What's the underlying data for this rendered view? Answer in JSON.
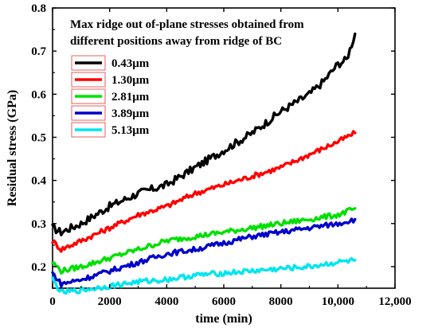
{
  "chart_data": {
    "type": "line",
    "title": "",
    "xlabel": "time (min)",
    "ylabel": "Residual stress (GPa)",
    "xlim": [
      0,
      12000
    ],
    "ylim": [
      0.15,
      0.8
    ],
    "grid": false,
    "legend_position": "upper-left",
    "x_ticks": [
      0,
      2000,
      4000,
      6000,
      8000,
      10000,
      12000
    ],
    "x_tick_labels": [
      "0",
      "2000",
      "4000",
      "6000",
      "8000",
      "10,000",
      "12,000"
    ],
    "y_ticks": [
      0.2,
      0.3,
      0.4,
      0.5,
      0.6,
      0.7,
      0.8
    ],
    "y_tick_labels": [
      "0.2",
      "0.3",
      "0.4",
      "0.5",
      "0.6",
      "0.7",
      "0.8"
    ],
    "annotation": [
      "Max ridge out of-plane stresses obtained from",
      "different positions away from ridge of BC"
    ],
    "series": [
      {
        "name": "0.43μm",
        "color": "#000000",
        "x": [
          0,
          300,
          1000,
          2000,
          3000,
          4000,
          5000,
          6000,
          7000,
          8000,
          9000,
          9500,
          10000,
          10300,
          10600
        ],
        "y": [
          0.29,
          0.28,
          0.3,
          0.34,
          0.37,
          0.39,
          0.43,
          0.47,
          0.51,
          0.56,
          0.6,
          0.63,
          0.67,
          0.68,
          0.74
        ]
      },
      {
        "name": "1.30μm",
        "color": "#ff0000",
        "x": [
          0,
          300,
          1000,
          2000,
          3000,
          4000,
          5000,
          6000,
          7000,
          8000,
          9000,
          10000,
          10600
        ],
        "y": [
          0.26,
          0.24,
          0.26,
          0.29,
          0.32,
          0.34,
          0.37,
          0.39,
          0.41,
          0.43,
          0.46,
          0.49,
          0.51
        ]
      },
      {
        "name": "2.81μm",
        "color": "#00e000",
        "x": [
          0,
          300,
          1000,
          2000,
          3000,
          4000,
          5000,
          6000,
          7000,
          8000,
          9000,
          10000,
          10600
        ],
        "y": [
          0.21,
          0.19,
          0.2,
          0.22,
          0.24,
          0.26,
          0.27,
          0.28,
          0.29,
          0.3,
          0.31,
          0.32,
          0.335
        ]
      },
      {
        "name": "3.89μm",
        "color": "#0000cc",
        "x": [
          0,
          300,
          1000,
          2000,
          3000,
          4000,
          5000,
          6000,
          7000,
          8000,
          9000,
          10000,
          10600
        ],
        "y": [
          0.185,
          0.16,
          0.17,
          0.19,
          0.21,
          0.23,
          0.24,
          0.255,
          0.27,
          0.28,
          0.29,
          0.3,
          0.31
        ]
      },
      {
        "name": "5.13μm",
        "color": "#00e5ee",
        "x": [
          0,
          300,
          1000,
          2000,
          3000,
          4000,
          5000,
          6000,
          7000,
          8000,
          9000,
          10000,
          10600
        ],
        "y": [
          0.17,
          0.14,
          0.145,
          0.155,
          0.165,
          0.17,
          0.18,
          0.185,
          0.19,
          0.195,
          0.2,
          0.21,
          0.215
        ]
      }
    ]
  }
}
